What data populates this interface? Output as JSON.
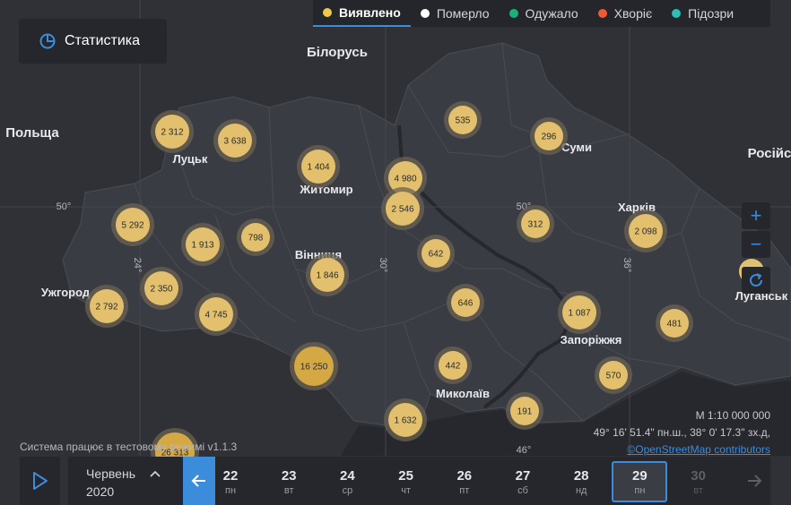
{
  "filters": [
    {
      "label": "Виявлено",
      "color": "#f2c84b",
      "active": true
    },
    {
      "label": "Померло",
      "color": "#ffffff",
      "active": false
    },
    {
      "label": "Одужало",
      "color": "#19b27a",
      "active": false
    },
    {
      "label": "Хворіє",
      "color": "#ee5a35",
      "active": false
    },
    {
      "label": "Підозри",
      "color": "#2bbfb7",
      "active": false
    }
  ],
  "stats_button": {
    "label": "Статистика",
    "icon": "pie-chart-icon"
  },
  "zoom": {
    "in": "+",
    "out": "−",
    "reset_icon": "refresh-icon"
  },
  "map": {
    "labels": [
      {
        "id": "bilorus",
        "text": "Білорусь"
      },
      {
        "id": "polshcha",
        "text": "Польща"
      },
      {
        "id": "rosiis",
        "text": "Російс"
      },
      {
        "id": "lutsk",
        "text": "Луцьк"
      },
      {
        "id": "zhytomyr",
        "text": "Житомир"
      },
      {
        "id": "sumy",
        "text": "Суми"
      },
      {
        "id": "kharkiv",
        "text": "Харків"
      },
      {
        "id": "vinnytsia",
        "text": "Вінниця"
      },
      {
        "id": "uzhhorod",
        "text": "Ужгород"
      },
      {
        "id": "zaporizhzhia",
        "text": "Запоріжжя"
      },
      {
        "id": "mykolaiv",
        "text": "Миколаїв"
      },
      {
        "id": "luhansk",
        "text": "Луганськ"
      }
    ],
    "grid_labels": [
      "50°",
      "50°",
      "24°",
      "30°",
      "36°",
      "46°"
    ],
    "clusters": [
      {
        "id": "volyn",
        "count": "2 312",
        "value": 2312
      },
      {
        "id": "rivne",
        "count": "3 638",
        "value": 3638
      },
      {
        "id": "zhytomyr",
        "count": "1 404",
        "value": 1404
      },
      {
        "id": "kyiv-city",
        "count": "4 980",
        "value": 4980
      },
      {
        "id": "kyiv-obl",
        "count": "2 546",
        "value": 2546
      },
      {
        "id": "chernihiv",
        "count": "535",
        "value": 535
      },
      {
        "id": "sumy",
        "count": "296",
        "value": 296
      },
      {
        "id": "poltava",
        "count": "312",
        "value": 312
      },
      {
        "id": "kharkiv",
        "count": "2 098",
        "value": 2098
      },
      {
        "id": "lviv",
        "count": "5 292",
        "value": 5292
      },
      {
        "id": "ternopil",
        "count": "1 913",
        "value": 1913
      },
      {
        "id": "khmelnytskyi",
        "count": "798",
        "value": 798
      },
      {
        "id": "vinnytsia",
        "count": "1 846",
        "value": 1846
      },
      {
        "id": "cherkasy",
        "count": "642",
        "value": 642
      },
      {
        "id": "ivano-frankivsk",
        "count": "2 350",
        "value": 2350
      },
      {
        "id": "zakarpattia",
        "count": "2 792",
        "value": 2792
      },
      {
        "id": "chernivtsi",
        "count": "4 745",
        "value": 4745
      },
      {
        "id": "kirovohrad",
        "count": "646",
        "value": 646
      },
      {
        "id": "dnipro",
        "count": "1 087",
        "value": 1087
      },
      {
        "id": "donetsk",
        "count": "481",
        "value": 481
      },
      {
        "id": "odesa-north",
        "count": "16 250",
        "value": 16250
      },
      {
        "id": "mykolaiv",
        "count": "442",
        "value": 442
      },
      {
        "id": "zaporizhzhia",
        "count": "570",
        "value": 570
      },
      {
        "id": "odesa",
        "count": "1 632",
        "value": 1632
      },
      {
        "id": "kherson",
        "count": "191",
        "value": 191
      },
      {
        "id": "south-west",
        "count": "26 313",
        "value": 26313
      }
    ]
  },
  "scale": {
    "text": "M 1:10 000 000",
    "coords": "49° 16' 51.4\" пн.ш., 38° 0' 17.3\" зх.д,",
    "attribution": "©OpenStreetMap contributors"
  },
  "test_note": "Система працює в тестовому режимі v1.1.3",
  "timeline": {
    "month": "Червень",
    "year": "2020",
    "days": [
      {
        "n": "22",
        "w": "пн",
        "state": "normal"
      },
      {
        "n": "23",
        "w": "вт",
        "state": "normal"
      },
      {
        "n": "24",
        "w": "ср",
        "state": "normal"
      },
      {
        "n": "25",
        "w": "чт",
        "state": "normal"
      },
      {
        "n": "26",
        "w": "пт",
        "state": "normal"
      },
      {
        "n": "27",
        "w": "сб",
        "state": "normal"
      },
      {
        "n": "28",
        "w": "нд",
        "state": "normal"
      },
      {
        "n": "29",
        "w": "пн",
        "state": "selected"
      },
      {
        "n": "30",
        "w": "вт",
        "state": "disabled"
      }
    ]
  },
  "colors": {
    "accent": "#3b8ddc",
    "cluster": "#e2c06d",
    "cluster_large": "#d4a843",
    "land": "#3b3d44",
    "background": "#2f3137"
  }
}
